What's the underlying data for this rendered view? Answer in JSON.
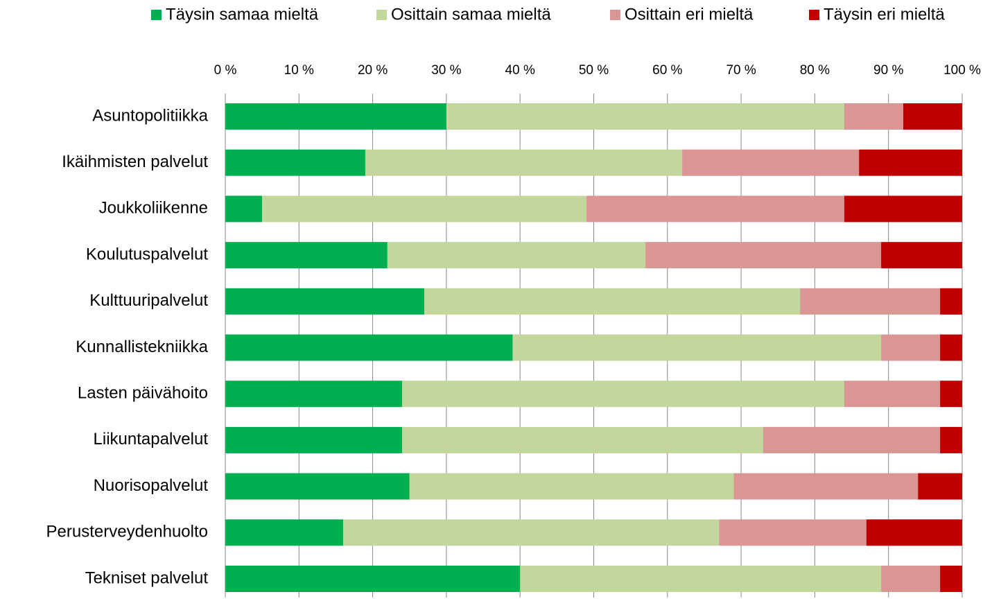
{
  "chart_data": {
    "type": "stacked_bar_horizontal",
    "categories": [
      "Asuntopolitiikka",
      "Ikäihmisten palvelut",
      "Joukkoliikenne",
      "Koulutuspalvelut",
      "Kulttuuripalvelut",
      "Kunnallistekniikka",
      "Lasten päivähoito",
      "Liikuntapalvelut",
      "Nuorisopalvelut",
      "Perusterveydenhuolto",
      "Tekniset palvelut"
    ],
    "series": [
      {
        "name": "Täysin samaa mieltä",
        "color": "#00b050",
        "values": [
          30,
          19,
          5,
          22,
          27,
          39,
          24,
          24,
          25,
          16,
          40
        ]
      },
      {
        "name": "Osittain samaa mieltä",
        "color": "#c3d69b",
        "values": [
          54,
          43,
          44,
          35,
          51,
          50,
          60,
          49,
          44,
          51,
          49
        ]
      },
      {
        "name": "Osittain eri mieltä",
        "color": "#d99694",
        "values": [
          8,
          24,
          35,
          32,
          19,
          8,
          13,
          24,
          25,
          20,
          8
        ]
      },
      {
        "name": "Täysin eri mieltä",
        "color": "#c00000",
        "values": [
          8,
          14,
          16,
          11,
          3,
          3,
          3,
          3,
          6,
          13,
          3
        ]
      }
    ],
    "xlim": [
      0,
      100
    ],
    "xticks": [
      {
        "value": 0,
        "label": "0 %"
      },
      {
        "value": 10,
        "label": "10 %"
      },
      {
        "value": 20,
        "label": "20 %"
      },
      {
        "value": 30,
        "label": "30 %"
      },
      {
        "value": 40,
        "label": "40 %"
      },
      {
        "value": 50,
        "label": "50 %"
      },
      {
        "value": 60,
        "label": "60 %"
      },
      {
        "value": 70,
        "label": "70 %"
      },
      {
        "value": 80,
        "label": "80 %"
      },
      {
        "value": 90,
        "label": "90 %"
      },
      {
        "value": 100,
        "label": "100 %"
      }
    ],
    "grid": true,
    "legend": "top"
  }
}
